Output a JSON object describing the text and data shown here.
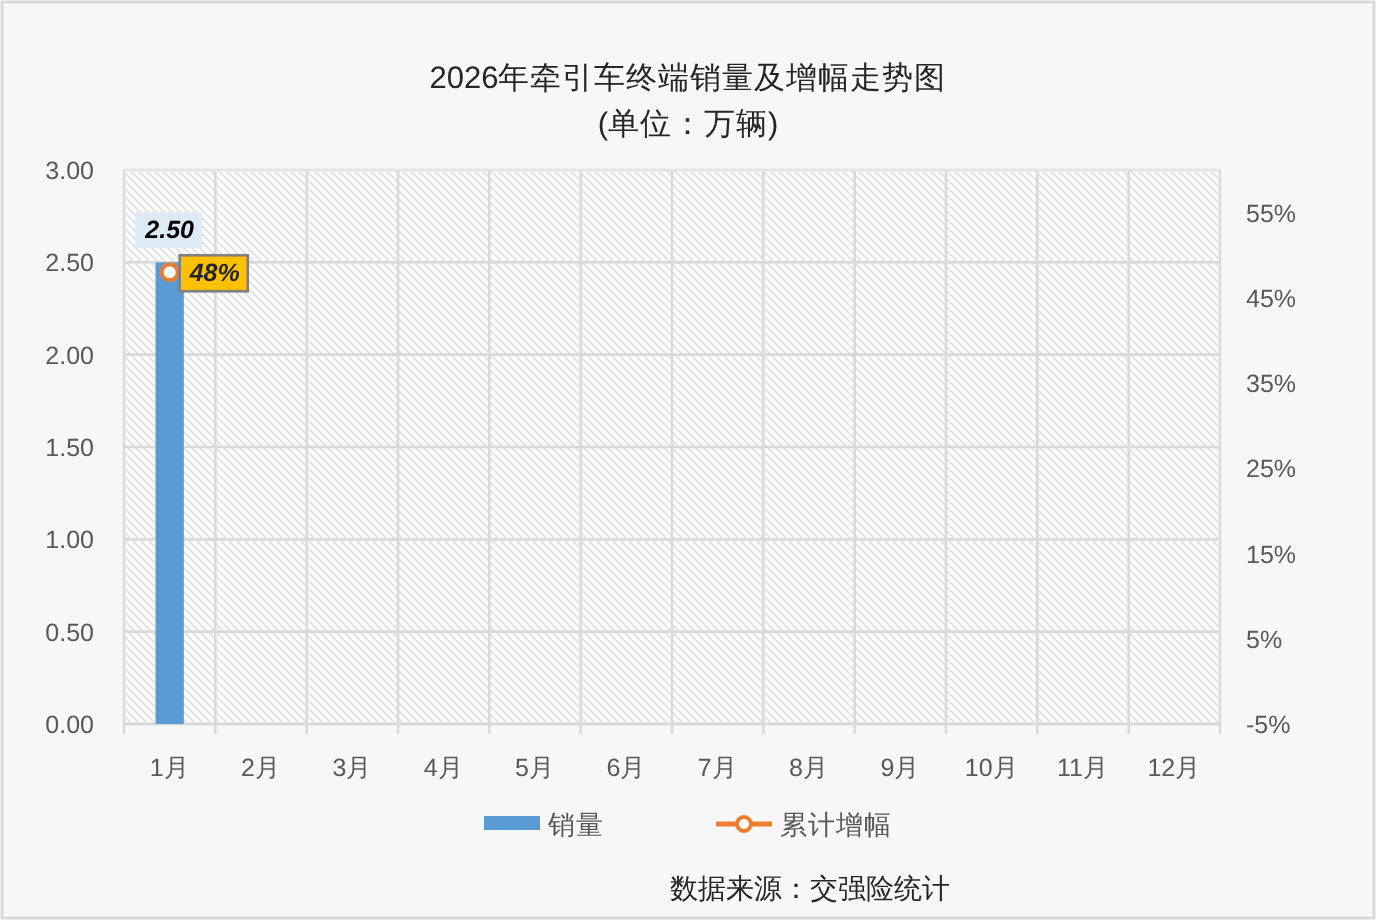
{
  "chart_data": {
    "type": "bar",
    "title": "2026年牵引车终端销量及增幅走势图",
    "subtitle": "(单位：万辆)",
    "categories": [
      "1月",
      "2月",
      "3月",
      "4月",
      "5月",
      "6月",
      "7月",
      "8月",
      "9月",
      "10月",
      "11月",
      "12月"
    ],
    "series": [
      {
        "name": "销量",
        "color": "#5b9bd5",
        "values": [
          2.5,
          null,
          null,
          null,
          null,
          null,
          null,
          null,
          null,
          null,
          null,
          null
        ],
        "value_labels": [
          "2.50",
          null,
          null,
          null,
          null,
          null,
          null,
          null,
          null,
          null,
          null,
          null
        ]
      },
      {
        "name": "累计增幅",
        "type": "line",
        "axis": "y2",
        "color": "#ed7d31",
        "values": [
          48,
          null,
          null,
          null,
          null,
          null,
          null,
          null,
          null,
          null,
          null,
          null
        ],
        "value_labels": [
          "48%",
          null,
          null,
          null,
          null,
          null,
          null,
          null,
          null,
          null,
          null,
          null
        ]
      }
    ],
    "marker": "circle",
    "ylim": [
      0,
      3
    ],
    "yticks": [
      {
        "value": 0,
        "label": "0.00"
      },
      {
        "value": 0.5,
        "label": "0.50"
      },
      {
        "value": 1,
        "label": "1.00"
      },
      {
        "value": 1.5,
        "label": "1.50"
      },
      {
        "value": 2,
        "label": "2.00"
      },
      {
        "value": 2.5,
        "label": "2.50"
      },
      {
        "value": 3,
        "label": "3.00"
      }
    ],
    "y2lim": [
      -5,
      60
    ],
    "y2ticks": [
      {
        "value": -5,
        "label": "-5%"
      },
      {
        "value": 5,
        "label": "5%"
      },
      {
        "value": 15,
        "label": "15%"
      },
      {
        "value": 25,
        "label": "25%"
      },
      {
        "value": 35,
        "label": "35%"
      },
      {
        "value": 45,
        "label": "45%"
      },
      {
        "value": 55,
        "label": "55%"
      }
    ],
    "grid": true,
    "legend": "bottom",
    "annotations": [
      "数据来源：交强险统计"
    ]
  }
}
